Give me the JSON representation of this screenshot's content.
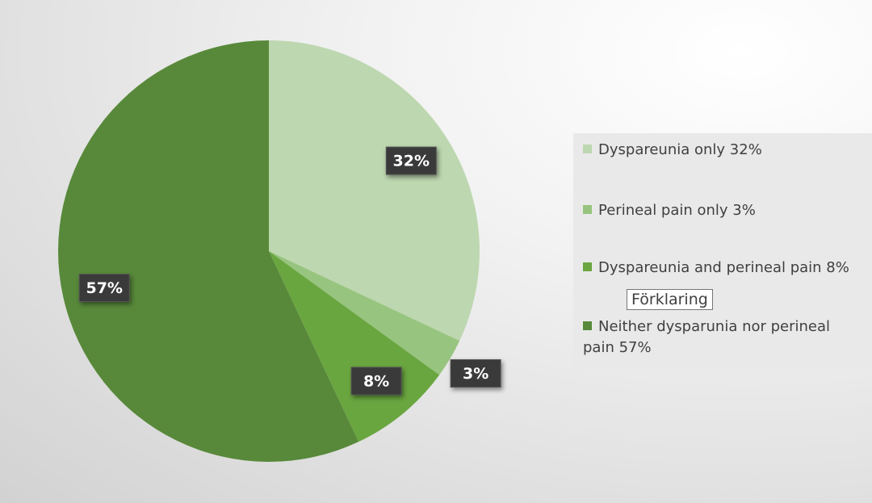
{
  "chart_data": {
    "type": "pie",
    "categories": [
      "Dyspareunia only 32%",
      "Perineal pain only 3%",
      "Dyspareunia and perineal pain 8%",
      "Neither dysparunia nor perineal pain 57%"
    ],
    "values": [
      32,
      3,
      8,
      57
    ],
    "value_labels": [
      "32%",
      "3%",
      "8%",
      "57%"
    ],
    "colors": [
      "#bdd7b0",
      "#97c47e",
      "#6aa640",
      "#58893a"
    ],
    "legend": "right",
    "tooltip": "Förklaring"
  }
}
